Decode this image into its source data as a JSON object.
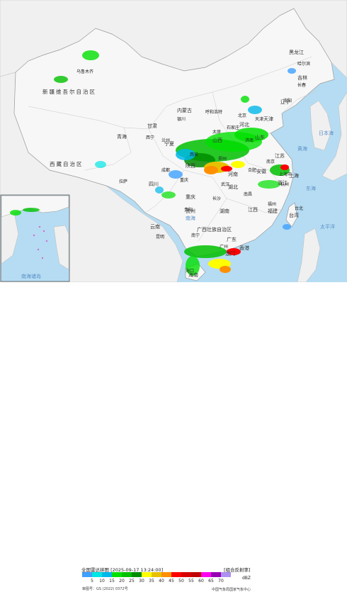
{
  "map_title": "全国雷达拼图",
  "timestamp": "2025-09-17 13:24:00",
  "product": "组合反射率",
  "unit": "dBZ",
  "review_number": "审图号：GS (2022) 0372号",
  "publisher": "中国气象局国家气象中心",
  "legend": {
    "values": [
      "5",
      "10",
      "15",
      "20",
      "25",
      "30",
      "35",
      "40",
      "45",
      "50",
      "55",
      "60",
      "65",
      "70"
    ],
    "colors": [
      "#3fa0ff",
      "#00e6e6",
      "#00b7ea",
      "#00e000",
      "#00c000",
      "#008c00",
      "#ffff00",
      "#e7c000",
      "#ff9000",
      "#ff0000",
      "#d60000",
      "#c00000",
      "#ff00f0",
      "#9600b4",
      "#ad90f0"
    ]
  },
  "regions": [
    "新疆维吾尔自治区",
    "西藏自治区",
    "青海",
    "甘肃",
    "宁夏",
    "内蒙古",
    "黑龙江",
    "吉林",
    "辽宁",
    "河北",
    "山西",
    "陕西",
    "四川",
    "重庆",
    "河南",
    "山东",
    "江苏",
    "安徽",
    "湖北",
    "湖南",
    "江西",
    "浙江",
    "福建",
    "台湾",
    "广东",
    "广西壮族自治区",
    "贵州",
    "云南",
    "海南",
    "天津",
    "上海",
    "香港",
    "澳门"
  ],
  "cities": [
    "乌鲁木齐",
    "哈尔滨",
    "长春",
    "沈阳",
    "北京",
    "天津",
    "石家庄",
    "呼和浩特",
    "太原",
    "银川",
    "兰州",
    "西宁",
    "西安",
    "郑州",
    "济南",
    "南京",
    "合肥",
    "上海市",
    "杭州",
    "武汉",
    "长沙",
    "南昌",
    "福州",
    "台北",
    "成都",
    "重庆",
    "贵阳",
    "昆明",
    "拉萨",
    "南宁",
    "广州",
    "海口"
  ],
  "seas": [
    "日本海",
    "黄海",
    "东海",
    "太平洋",
    "南海",
    "南海诸岛"
  ],
  "water": [
    "#b5dcf2"
  ]
}
